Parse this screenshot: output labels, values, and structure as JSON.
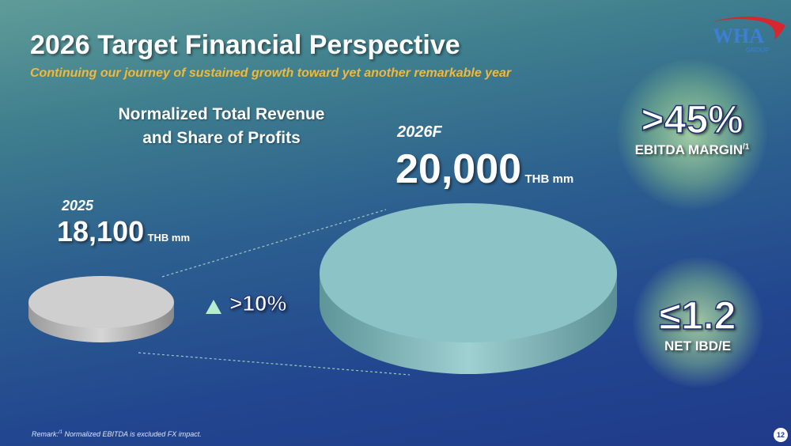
{
  "header": {
    "title": "2026 Target Financial Perspective",
    "subtitle": "Continuing our journey of sustained growth toward yet another remarkable year"
  },
  "logo": {
    "text": "WHA",
    "subtext": "GROUP",
    "colors": {
      "text": "#3b7fd6",
      "swoosh": "#d8262e"
    }
  },
  "section_title": {
    "line1": "Normalized Total Revenue",
    "line2": "and Share of Profits"
  },
  "revenue": {
    "y2025": {
      "year": "2025",
      "value": "18,100",
      "unit": "THB mm",
      "disc_color": "#c9c9c9"
    },
    "y2026": {
      "year": "2026F",
      "value": "20,000",
      "unit": "THB mm",
      "disc_color": "#8cc3c6"
    },
    "growth": {
      "icon": "triangle-up-icon",
      "value": ">10%",
      "color": "#b8ecd0"
    }
  },
  "kpis": [
    {
      "value": ">45%",
      "label": "EBITDA MARGIN",
      "sup": "/1"
    },
    {
      "value": "≤1.2",
      "label": "NET IBD/E"
    }
  ],
  "footer": {
    "remark_prefix": "Remark:",
    "remark_sup": "/1",
    "remark_text": " Normalized EBITDA is excluded FX impact.",
    "page_number": "12"
  }
}
